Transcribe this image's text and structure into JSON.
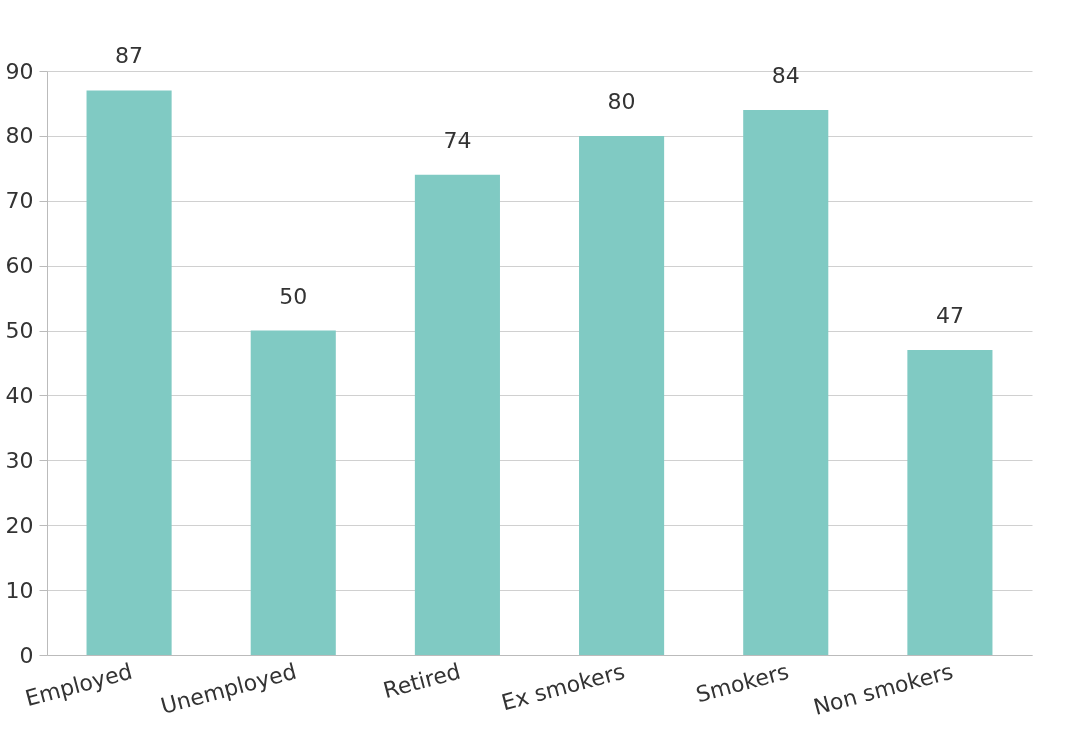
{
  "chart_data": {
    "type": "bar",
    "categories": [
      "Employed",
      "Unemployed",
      "Retired",
      "Ex smokers",
      "Smokers",
      "Non smokers"
    ],
    "values": [
      87,
      50,
      74,
      80,
      84,
      47
    ],
    "color": "#80cac3",
    "ylim": [
      0,
      90
    ],
    "yticks": [
      0,
      10,
      20,
      30,
      40,
      50,
      60,
      70,
      80,
      90
    ],
    "grid": "y",
    "data_labels": true
  }
}
